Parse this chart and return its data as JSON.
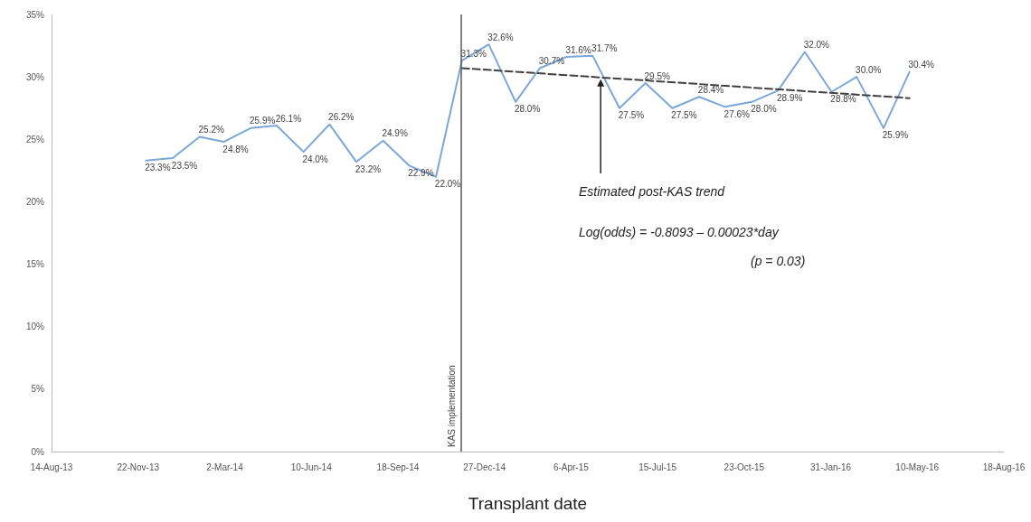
{
  "chart_data": {
    "type": "line",
    "xlabel": "Transplant date",
    "xlim": [
      "2013-08-14",
      "2016-08-18"
    ],
    "xticks": [
      {
        "value": "2013-08-14",
        "label": "14-Aug-13"
      },
      {
        "value": "2013-11-22",
        "label": "22-Nov-13"
      },
      {
        "value": "2014-03-02",
        "label": "2-Mar-14"
      },
      {
        "value": "2014-06-10",
        "label": "10-Jun-14"
      },
      {
        "value": "2014-09-18",
        "label": "18-Sep-14"
      },
      {
        "value": "2014-12-27",
        "label": "27-Dec-14"
      },
      {
        "value": "2015-04-06",
        "label": "6-Apr-15"
      },
      {
        "value": "2015-07-15",
        "label": "15-Jul-15"
      },
      {
        "value": "2015-10-23",
        "label": "23-Oct-15"
      },
      {
        "value": "2016-01-31",
        "label": "31-Jan-16"
      },
      {
        "value": "2016-05-10",
        "label": "10-May-16"
      },
      {
        "value": "2016-08-18",
        "label": "18-Aug-16"
      }
    ],
    "ylim": [
      0,
      35
    ],
    "yticks": [
      {
        "value": 0,
        "label": "0%"
      },
      {
        "value": 5,
        "label": "5%"
      },
      {
        "value": 10,
        "label": "10%"
      },
      {
        "value": 15,
        "label": "15%"
      },
      {
        "value": 20,
        "label": "20%"
      },
      {
        "value": 25,
        "label": "25%"
      },
      {
        "value": 30,
        "label": "30%"
      },
      {
        "value": 35,
        "label": "35%"
      }
    ],
    "grid": false,
    "marker": "none",
    "series": [
      {
        "color": "#7ba7d9",
        "line_style": "solid",
        "x": [
          "2013-12-01",
          "2014-01-01",
          "2014-02-01",
          "2014-03-01",
          "2014-04-01",
          "2014-05-01",
          "2014-06-01",
          "2014-07-01",
          "2014-08-01",
          "2014-09-01",
          "2014-10-01",
          "2014-11-01",
          "2014-12-01",
          "2015-01-01",
          "2015-02-01",
          "2015-03-01",
          "2015-04-01",
          "2015-05-01",
          "2015-06-01",
          "2015-07-01",
          "2015-08-01",
          "2015-09-01",
          "2015-10-01",
          "2015-11-01",
          "2015-12-01",
          "2016-01-01",
          "2016-02-01",
          "2016-03-01",
          "2016-04-01",
          "2016-05-01"
        ],
        "values": [
          23.3,
          23.5,
          25.2,
          24.8,
          25.9,
          26.1,
          24.0,
          26.2,
          23.2,
          24.9,
          22.9,
          22.0,
          31.3,
          32.6,
          28.0,
          30.7,
          31.6,
          31.7,
          27.5,
          29.5,
          27.5,
          28.4,
          27.6,
          28.0,
          28.9,
          32.0,
          28.8,
          30.0,
          25.9,
          30.4
        ],
        "value_labels": [
          "23.3%",
          "23.5%",
          "25.2%",
          "24.8%",
          "25.9%",
          "26.1%",
          "24.0%",
          "26.2%",
          "23.2%",
          "24.9%",
          "22.9%",
          "22.0%",
          "31.3%",
          "32.6%",
          "28.0%",
          "30.7%",
          "31.6%",
          "31.7%",
          "27.5%",
          "29.5%",
          "27.5%",
          "28.4%",
          "27.6%",
          "28.0%",
          "28.9%",
          "32.0%",
          "28.8%",
          "30.0%",
          "25.9%",
          "30.4%"
        ]
      },
      {
        "type": "line",
        "color": "#404040",
        "line_style": "dashed",
        "x": [
          "2014-12-01",
          "2016-05-01"
        ],
        "values": [
          30.7,
          28.3
        ]
      }
    ],
    "ref_lines": [
      {
        "axis": "x",
        "value": "2014-11-30",
        "label": "KAS implementation",
        "color": "#595959"
      }
    ],
    "annotations": [
      "Estimated post-KAS trend",
      "Log(odds) = -0.8093 – 0.00023*day",
      "(p = 0.03)"
    ]
  }
}
